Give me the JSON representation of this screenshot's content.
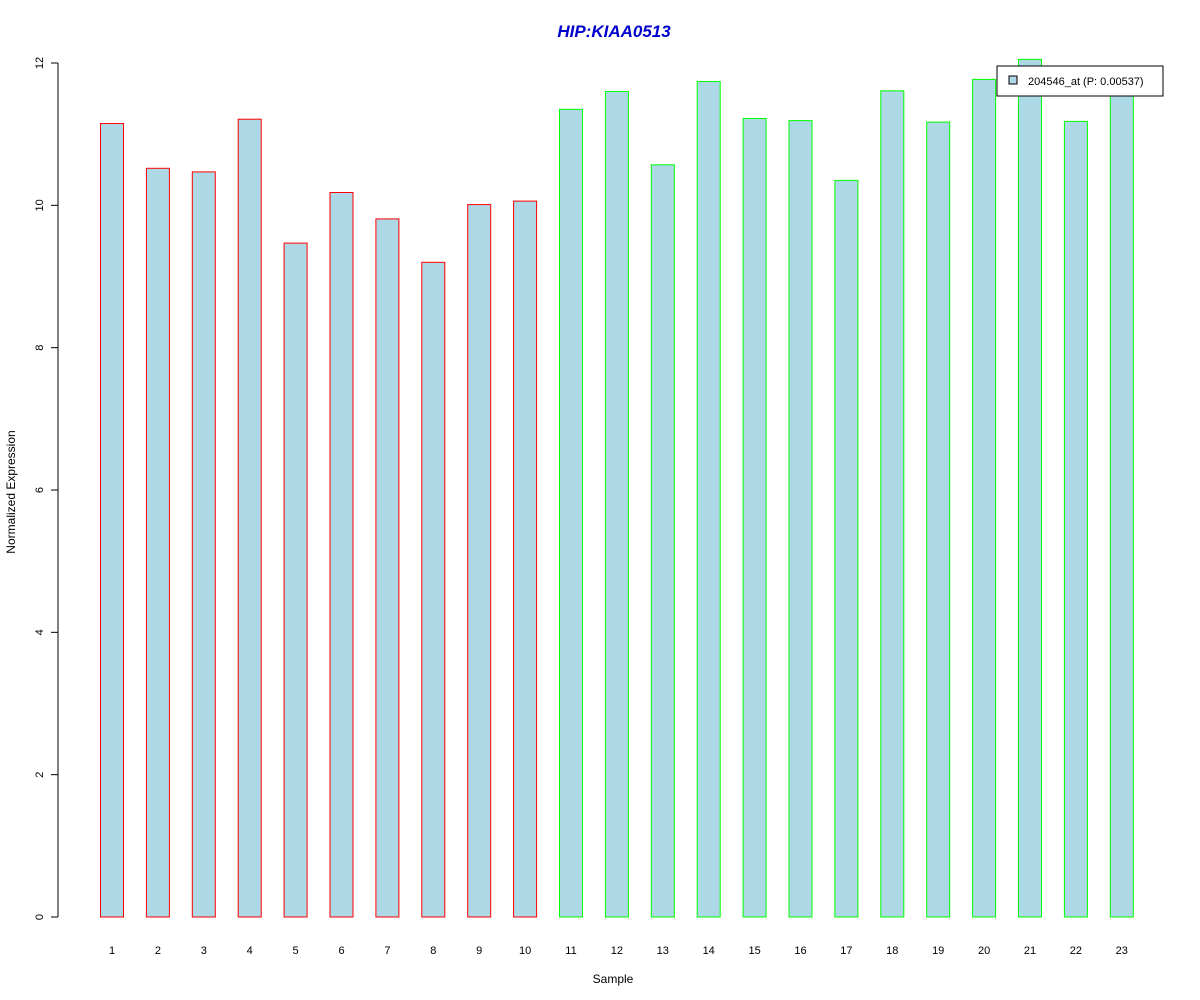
{
  "chart_data": {
    "type": "bar",
    "title": "HIP:KIAA0513",
    "xlabel": "Sample",
    "ylabel": "Normalized Expression",
    "ylim": [
      0,
      12
    ],
    "yticks": [
      0,
      2,
      4,
      6,
      8,
      10,
      12
    ],
    "grid": false,
    "legend_position": "top-right",
    "categories": [
      "1",
      "2",
      "3",
      "4",
      "5",
      "6",
      "7",
      "8",
      "9",
      "10",
      "11",
      "12",
      "13",
      "14",
      "15",
      "16",
      "17",
      "18",
      "19",
      "20",
      "21",
      "22",
      "23"
    ],
    "series": [
      {
        "name": "204546_at (P: 0.00537)",
        "values": [
          11.15,
          10.52,
          10.47,
          11.21,
          9.47,
          10.18,
          9.81,
          9.2,
          10.01,
          10.06,
          11.35,
          11.6,
          10.57,
          11.74,
          11.22,
          11.19,
          10.35,
          11.61,
          11.17,
          11.77,
          12.05,
          11.18,
          11.65
        ]
      }
    ],
    "groups": [
      {
        "from": 1,
        "to": 10,
        "border_color": "#ff0000"
      },
      {
        "from": 11,
        "to": 23,
        "border_color": "#00ff00"
      }
    ],
    "colors": {
      "bar_fill": "#add8e6",
      "title": "#0000cc",
      "axis": "#000000",
      "legend_border": "#000000"
    }
  }
}
